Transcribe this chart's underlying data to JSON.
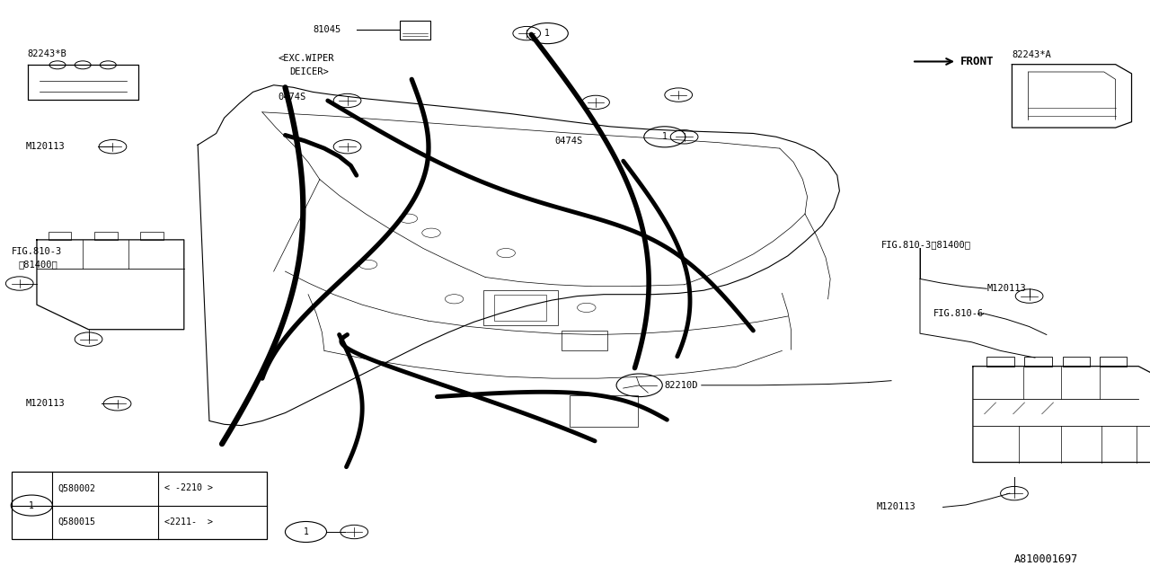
{
  "bg_color": "#ffffff",
  "line_color": "#000000",
  "fig_width": 12.8,
  "fig_height": 6.4,
  "part_number": "A810001697",
  "table_rows": [
    [
      "Q580002",
      "< -2210 >"
    ],
    [
      "Q580015",
      "<2211-  >"
    ]
  ]
}
